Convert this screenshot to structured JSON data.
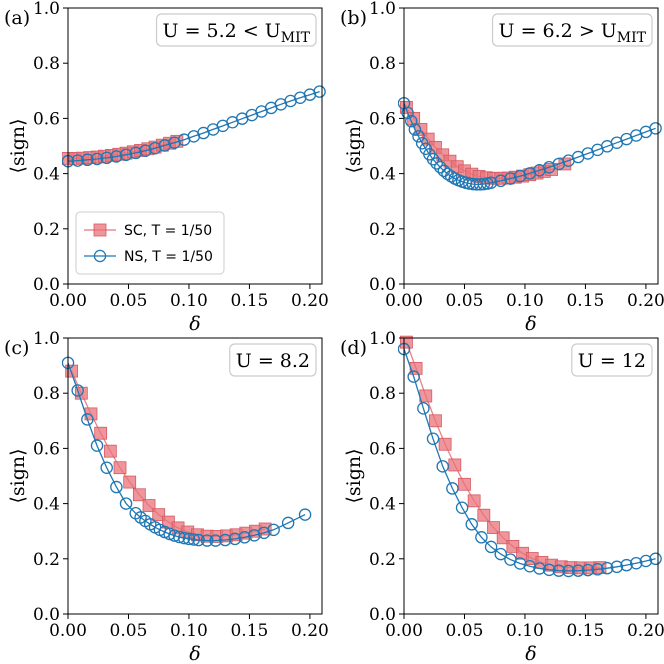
{
  "colors": {
    "sc": "#e8737a",
    "sc_edge": "#d45a62",
    "ns": "#1f77b4"
  },
  "legend": {
    "sc_label": "SC, T = 1/50",
    "ns_label": "NS, T = 1/50"
  },
  "chart_data": [
    {
      "type": "scatter",
      "tag": "(a)",
      "annotation": "U = 5.2 < U_MIT",
      "xlabel": "δ",
      "ylabel": "⟨sign⟩",
      "xlim": [
        0,
        0.21
      ],
      "ylim": [
        0,
        1.0
      ],
      "xticks": [
        "0.00",
        "0.05",
        "0.10",
        "0.15",
        "0.20"
      ],
      "yticks": [
        "0.0",
        "0.2",
        "0.4",
        "0.6",
        "0.8",
        "1.0"
      ],
      "legend_position": "lower-left",
      "series": [
        {
          "name": "SC, T = 1/50",
          "marker": "square",
          "x": [
            0.0,
            0.006,
            0.012,
            0.018,
            0.024,
            0.03,
            0.036,
            0.042,
            0.048,
            0.054,
            0.06,
            0.066,
            0.072,
            0.078,
            0.084,
            0.09
          ],
          "y": [
            0.455,
            0.455,
            0.456,
            0.458,
            0.46,
            0.463,
            0.466,
            0.47,
            0.474,
            0.479,
            0.484,
            0.49,
            0.496,
            0.503,
            0.51,
            0.517
          ]
        },
        {
          "name": "NS, T = 1/50",
          "marker": "circle",
          "x": [
            0.0,
            0.008,
            0.016,
            0.024,
            0.032,
            0.04,
            0.048,
            0.056,
            0.064,
            0.072,
            0.08,
            0.088,
            0.096,
            0.104,
            0.112,
            0.12,
            0.128,
            0.136,
            0.144,
            0.152,
            0.16,
            0.168,
            0.176,
            0.184,
            0.192,
            0.2,
            0.208
          ],
          "y": [
            0.445,
            0.447,
            0.45,
            0.453,
            0.457,
            0.462,
            0.468,
            0.475,
            0.483,
            0.492,
            0.502,
            0.512,
            0.523,
            0.535,
            0.547,
            0.56,
            0.573,
            0.586,
            0.599,
            0.612,
            0.625,
            0.638,
            0.651,
            0.663,
            0.675,
            0.686,
            0.697
          ]
        }
      ]
    },
    {
      "type": "scatter",
      "tag": "(b)",
      "annotation": "U = 6.2 > U_MIT",
      "xlabel": "δ",
      "ylabel": "⟨sign⟩",
      "xlim": [
        0,
        0.21
      ],
      "ylim": [
        0,
        1.0
      ],
      "xticks": [
        "0.00",
        "0.05",
        "0.10",
        "0.15",
        "0.20"
      ],
      "yticks": [
        "0.0",
        "0.2",
        "0.4",
        "0.6",
        "0.8",
        "1.0"
      ],
      "series": [
        {
          "name": "SC, T = 1/50",
          "marker": "square",
          "x": [
            0.002,
            0.008,
            0.014,
            0.02,
            0.026,
            0.032,
            0.038,
            0.044,
            0.05,
            0.056,
            0.062,
            0.068,
            0.074,
            0.08,
            0.086,
            0.092,
            0.098,
            0.104,
            0.11,
            0.116,
            0.122,
            0.133
          ],
          "y": [
            0.64,
            0.6,
            0.56,
            0.525,
            0.495,
            0.468,
            0.445,
            0.425,
            0.41,
            0.398,
            0.39,
            0.385,
            0.383,
            0.383,
            0.384,
            0.387,
            0.391,
            0.396,
            0.402,
            0.408,
            0.415,
            0.435
          ]
        },
        {
          "name": "NS, T = 1/50",
          "marker": "circle",
          "x": [
            0.0,
            0.003,
            0.006,
            0.009,
            0.012,
            0.015,
            0.018,
            0.021,
            0.024,
            0.027,
            0.03,
            0.033,
            0.036,
            0.039,
            0.042,
            0.045,
            0.048,
            0.051,
            0.054,
            0.057,
            0.06,
            0.063,
            0.066,
            0.069,
            0.072,
            0.08,
            0.088,
            0.096,
            0.104,
            0.112,
            0.12,
            0.128,
            0.136,
            0.144,
            0.152,
            0.16,
            0.168,
            0.176,
            0.184,
            0.192,
            0.2,
            0.208
          ],
          "y": [
            0.655,
            0.62,
            0.59,
            0.56,
            0.535,
            0.51,
            0.49,
            0.47,
            0.452,
            0.437,
            0.423,
            0.41,
            0.399,
            0.39,
            0.382,
            0.376,
            0.371,
            0.367,
            0.364,
            0.362,
            0.361,
            0.361,
            0.362,
            0.364,
            0.367,
            0.374,
            0.382,
            0.391,
            0.401,
            0.412,
            0.423,
            0.435,
            0.447,
            0.46,
            0.473,
            0.486,
            0.499,
            0.512,
            0.525,
            0.538,
            0.551,
            0.564
          ]
        }
      ]
    },
    {
      "type": "scatter",
      "tag": "(c)",
      "annotation": "U = 8.2",
      "xlabel": "δ",
      "ylabel": "⟨sign⟩",
      "xlim": [
        0,
        0.21
      ],
      "ylim": [
        0,
        1.0
      ],
      "xticks": [
        "0.00",
        "0.05",
        "0.10",
        "0.15",
        "0.20"
      ],
      "yticks": [
        "0.0",
        "0.2",
        "0.4",
        "0.6",
        "0.8",
        "1.0"
      ],
      "series": [
        {
          "name": "SC, T = 1/50",
          "marker": "square",
          "x": [
            0.003,
            0.011,
            0.019,
            0.027,
            0.035,
            0.043,
            0.051,
            0.059,
            0.067,
            0.075,
            0.083,
            0.091,
            0.099,
            0.107,
            0.115,
            0.123,
            0.131,
            0.139,
            0.147,
            0.155,
            0.163
          ],
          "y": [
            0.88,
            0.8,
            0.725,
            0.655,
            0.59,
            0.53,
            0.478,
            0.432,
            0.393,
            0.36,
            0.333,
            0.312,
            0.297,
            0.287,
            0.282,
            0.281,
            0.283,
            0.287,
            0.293,
            0.3,
            0.308
          ]
        },
        {
          "name": "NS, T = 1/50",
          "marker": "circle",
          "x": [
            0.0,
            0.008,
            0.016,
            0.024,
            0.032,
            0.04,
            0.048,
            0.056,
            0.06,
            0.064,
            0.068,
            0.072,
            0.076,
            0.08,
            0.084,
            0.088,
            0.092,
            0.096,
            0.1,
            0.104,
            0.108,
            0.115,
            0.122,
            0.13,
            0.138,
            0.146,
            0.154,
            0.162,
            0.17,
            0.182,
            0.196
          ],
          "y": [
            0.91,
            0.81,
            0.705,
            0.61,
            0.53,
            0.46,
            0.4,
            0.365,
            0.35,
            0.337,
            0.325,
            0.314,
            0.305,
            0.297,
            0.29,
            0.284,
            0.279,
            0.275,
            0.272,
            0.27,
            0.268,
            0.266,
            0.266,
            0.268,
            0.272,
            0.278,
            0.285,
            0.294,
            0.305,
            0.33,
            0.36
          ]
        }
      ]
    },
    {
      "type": "scatter",
      "tag": "(d)",
      "annotation": "U = 12",
      "xlabel": "δ",
      "ylabel": "⟨sign⟩",
      "xlim": [
        0,
        0.21
      ],
      "ylim": [
        0,
        1.0
      ],
      "xticks": [
        "0.00",
        "0.05",
        "0.10",
        "0.15",
        "0.20"
      ],
      "yticks": [
        "0.0",
        "0.2",
        "0.4",
        "0.6",
        "0.8",
        "1.0"
      ],
      "series": [
        {
          "name": "SC, T = 1/50",
          "marker": "square",
          "x": [
            0.002,
            0.01,
            0.018,
            0.026,
            0.034,
            0.042,
            0.05,
            0.058,
            0.066,
            0.074,
            0.082,
            0.09,
            0.098,
            0.106,
            0.114,
            0.122,
            0.13,
            0.138,
            0.146,
            0.154,
            0.162
          ],
          "y": [
            0.985,
            0.89,
            0.79,
            0.7,
            0.615,
            0.54,
            0.47,
            0.41,
            0.358,
            0.313,
            0.276,
            0.245,
            0.22,
            0.201,
            0.187,
            0.177,
            0.171,
            0.168,
            0.167,
            0.167,
            0.168
          ]
        },
        {
          "name": "NS, T = 1/50",
          "marker": "circle",
          "x": [
            0.0,
            0.008,
            0.016,
            0.024,
            0.032,
            0.04,
            0.048,
            0.056,
            0.064,
            0.072,
            0.08,
            0.088,
            0.096,
            0.104,
            0.112,
            0.12,
            0.128,
            0.136,
            0.144,
            0.152,
            0.16,
            0.168,
            0.176,
            0.184,
            0.192,
            0.2,
            0.208
          ],
          "y": [
            0.96,
            0.86,
            0.745,
            0.635,
            0.535,
            0.455,
            0.385,
            0.325,
            0.278,
            0.243,
            0.217,
            0.197,
            0.183,
            0.173,
            0.165,
            0.16,
            0.157,
            0.156,
            0.157,
            0.159,
            0.162,
            0.166,
            0.171,
            0.177,
            0.184,
            0.192,
            0.2
          ]
        }
      ]
    }
  ]
}
